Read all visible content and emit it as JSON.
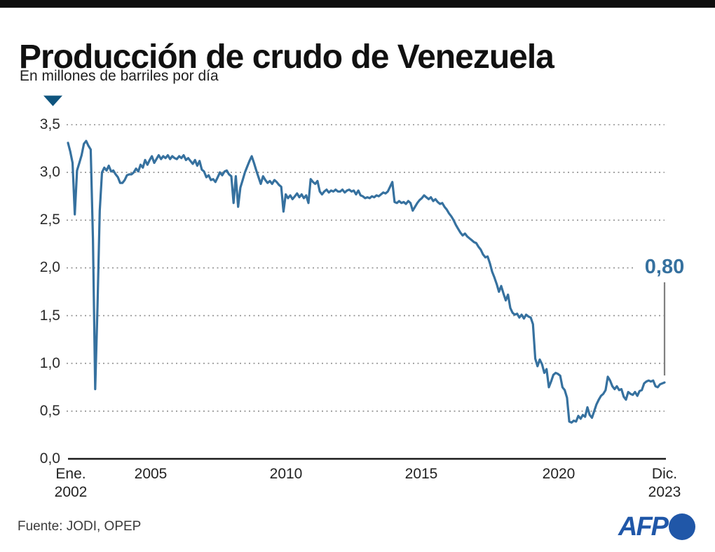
{
  "header": {
    "title": "Producción de crudo de Venezuela",
    "subtitle": "En millones de barriles por día"
  },
  "annotation": {
    "end_label": "0,80"
  },
  "footer": {
    "source": "Fuente: JODI, OPEP",
    "logo_text": "AFP"
  },
  "colors": {
    "line": "#36719f",
    "marker_triangle": "#0e547e",
    "afp_blue": "#2057a8",
    "grid_gray": "#8f8f8f",
    "axis_dark": "#1c1c1c",
    "pointer_gray": "#808080",
    "topbar_black": "#0d0d0d"
  },
  "chart_data": {
    "type": "line",
    "title": "Producción de crudo de Venezuela",
    "subtitle": "En millones de barriles por día",
    "unit": "millones de barriles por día",
    "source": "JODI, OPEP",
    "grid": "horizontal dotted",
    "legend": "none",
    "ylim": [
      0,
      3.7
    ],
    "y_ticks": [
      "3,5",
      "3,0",
      "2,5",
      "2,0",
      "1,5",
      "1,0",
      "0,5",
      "0,0"
    ],
    "y_tick_values": [
      3.5,
      3.0,
      2.5,
      2.0,
      1.5,
      1.0,
      0.5,
      0.0
    ],
    "x_axis": {
      "first_tick": {
        "top": "Ene.",
        "bottom": "2002"
      },
      "mid_ticks": [
        "2005",
        "2010",
        "2015",
        "2020"
      ],
      "last_tick": {
        "top": "Dic.",
        "bottom": "2023"
      }
    },
    "line_color": "#36719f",
    "end_label": "0,80",
    "end_value": 0.8,
    "series": [
      {
        "name": "Producción de crudo",
        "frequency": "monthly",
        "start": "2002-01",
        "end": "2023-12",
        "values": [
          3.31,
          3.22,
          3.1,
          2.56,
          3.02,
          3.1,
          3.18,
          3.3,
          3.33,
          3.28,
          3.24,
          2.3,
          0.73,
          1.6,
          2.6,
          3.0,
          3.05,
          3.02,
          3.07,
          3.01,
          3.02,
          2.98,
          2.95,
          2.89,
          2.89,
          2.92,
          2.97,
          2.98,
          2.98,
          3.0,
          3.04,
          3.01,
          3.08,
          3.05,
          3.13,
          3.08,
          3.13,
          3.17,
          3.1,
          3.14,
          3.18,
          3.14,
          3.17,
          3.15,
          3.18,
          3.14,
          3.17,
          3.15,
          3.14,
          3.17,
          3.15,
          3.18,
          3.13,
          3.15,
          3.12,
          3.09,
          3.13,
          3.07,
          3.12,
          3.03,
          3.01,
          2.95,
          2.97,
          2.92,
          2.93,
          2.9,
          2.95,
          3.0,
          2.97,
          3.01,
          3.02,
          2.98,
          2.96,
          2.68,
          2.96,
          2.64,
          2.84,
          2.92,
          3.0,
          3.06,
          3.12,
          3.17,
          3.1,
          3.02,
          2.95,
          2.88,
          2.96,
          2.92,
          2.89,
          2.91,
          2.88,
          2.92,
          2.9,
          2.87,
          2.85,
          2.59,
          2.77,
          2.73,
          2.76,
          2.72,
          2.75,
          2.78,
          2.74,
          2.77,
          2.73,
          2.76,
          2.68,
          2.93,
          2.9,
          2.88,
          2.91,
          2.8,
          2.77,
          2.8,
          2.82,
          2.79,
          2.81,
          2.8,
          2.82,
          2.8,
          2.8,
          2.82,
          2.79,
          2.81,
          2.82,
          2.8,
          2.81,
          2.77,
          2.81,
          2.76,
          2.75,
          2.73,
          2.74,
          2.73,
          2.75,
          2.74,
          2.76,
          2.75,
          2.77,
          2.79,
          2.78,
          2.8,
          2.85,
          2.9,
          2.69,
          2.68,
          2.7,
          2.68,
          2.69,
          2.67,
          2.7,
          2.68,
          2.6,
          2.64,
          2.68,
          2.71,
          2.73,
          2.76,
          2.74,
          2.72,
          2.74,
          2.7,
          2.72,
          2.69,
          2.67,
          2.68,
          2.64,
          2.61,
          2.57,
          2.54,
          2.5,
          2.45,
          2.41,
          2.37,
          2.34,
          2.36,
          2.33,
          2.31,
          2.29,
          2.27,
          2.26,
          2.22,
          2.19,
          2.14,
          2.11,
          2.12,
          2.05,
          1.96,
          1.9,
          1.83,
          1.75,
          1.81,
          1.73,
          1.66,
          1.72,
          1.58,
          1.53,
          1.51,
          1.52,
          1.48,
          1.51,
          1.47,
          1.51,
          1.49,
          1.48,
          1.41,
          1.05,
          0.97,
          1.04,
          0.99,
          0.9,
          0.94,
          0.75,
          0.81,
          0.88,
          0.9,
          0.89,
          0.87,
          0.75,
          0.72,
          0.64,
          0.39,
          0.38,
          0.4,
          0.39,
          0.45,
          0.42,
          0.46,
          0.44,
          0.54,
          0.46,
          0.43,
          0.5,
          0.57,
          0.62,
          0.66,
          0.68,
          0.72,
          0.86,
          0.82,
          0.76,
          0.73,
          0.76,
          0.72,
          0.73,
          0.65,
          0.62,
          0.7,
          0.68,
          0.67,
          0.7,
          0.66,
          0.71,
          0.72,
          0.79,
          0.81,
          0.82,
          0.81,
          0.82,
          0.76,
          0.75,
          0.78,
          0.79,
          0.8
        ]
      }
    ]
  }
}
